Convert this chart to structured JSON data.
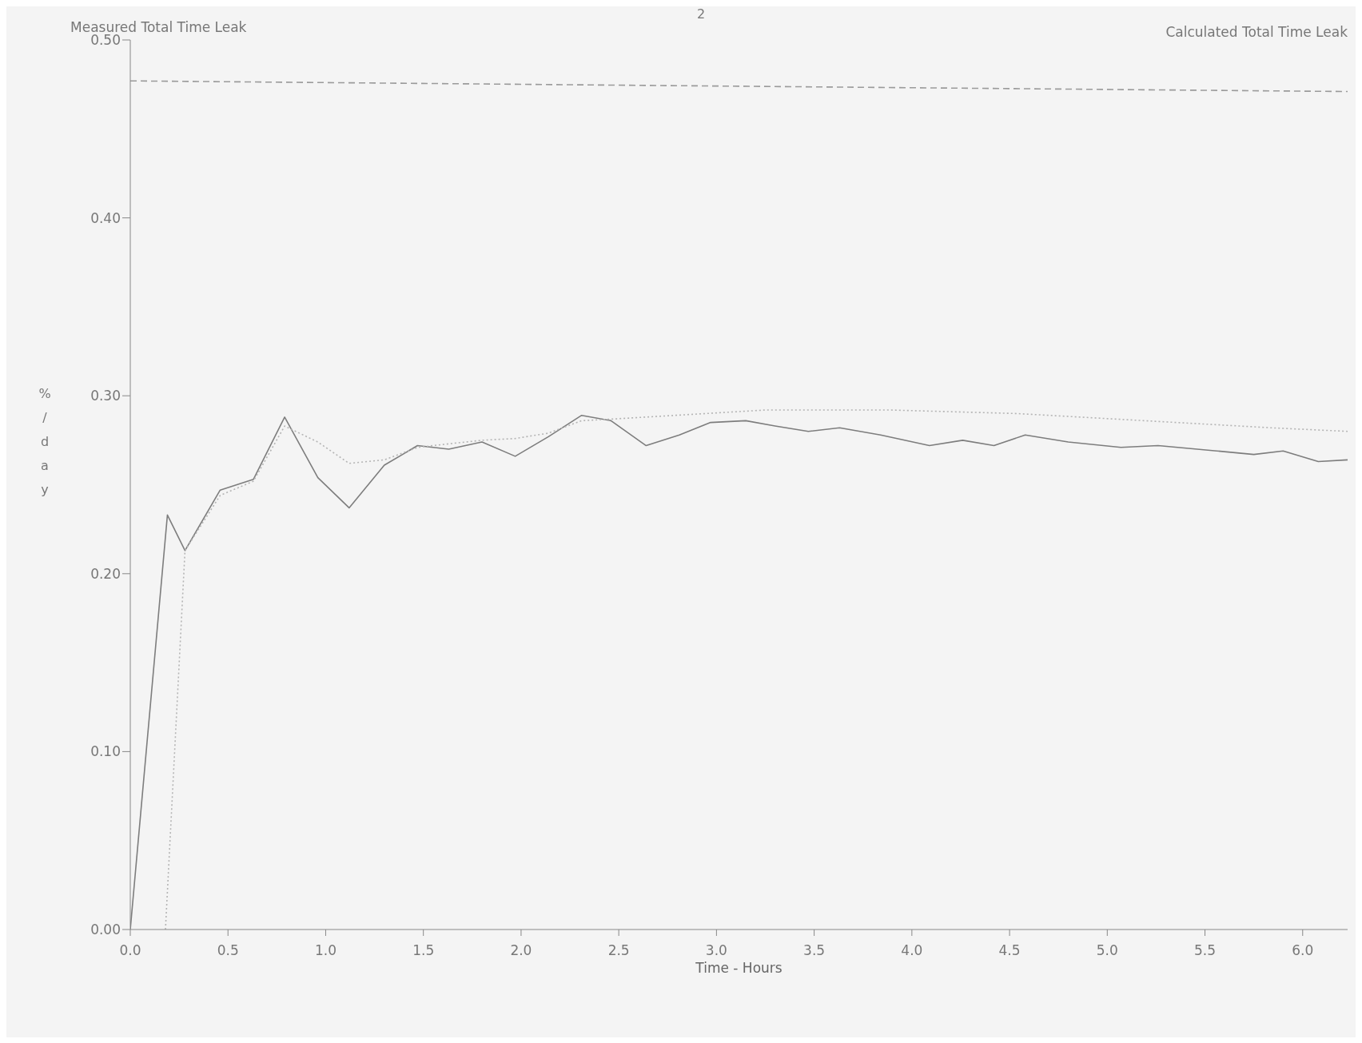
{
  "chart_data": {
    "type": "line",
    "xlabel": "Time - Hours",
    "ylabel": "%/day",
    "annotations": [
      "2",
      "Measured Total Time Leak",
      "Calculated Total Time Leak"
    ],
    "xlim": [
      0,
      6.23
    ],
    "ylim": [
      0,
      0.5
    ],
    "xticks": [
      {
        "value": 0,
        "label": "0.0"
      },
      {
        "value": 0.5,
        "label": "0.5"
      },
      {
        "value": 1,
        "label": "1.0"
      },
      {
        "value": 1.5,
        "label": "1.5"
      },
      {
        "value": 2,
        "label": "2.0"
      },
      {
        "value": 2.5,
        "label": "2.5"
      },
      {
        "value": 3,
        "label": "3.0"
      },
      {
        "value": 3.5,
        "label": "3.5"
      },
      {
        "value": 4,
        "label": "4.0"
      },
      {
        "value": 4.5,
        "label": "4.5"
      },
      {
        "value": 5,
        "label": "5.0"
      },
      {
        "value": 5.5,
        "label": "5.5"
      },
      {
        "value": 6,
        "label": "6.0"
      }
    ],
    "yticks": [
      {
        "value": 0,
        "label": "0.00"
      },
      {
        "value": 0.1,
        "label": "0.10"
      },
      {
        "value": 0.2,
        "label": "0.20"
      },
      {
        "value": 0.3,
        "label": "0.30"
      },
      {
        "value": 0.4,
        "label": "0.40"
      },
      {
        "value": 0.5,
        "label": "0.50"
      }
    ],
    "grid": false,
    "marker": "none",
    "series": [
      {
        "color": "#7d7d7d",
        "line_style": "solid",
        "x": [
          0,
          0.19,
          0.28,
          0.46,
          0.63,
          0.79,
          0.96,
          1.12,
          1.3,
          1.47,
          1.63,
          1.8,
          1.97,
          2.14,
          2.31,
          2.46,
          2.64,
          2.81,
          2.97,
          3.15,
          3.3,
          3.47,
          3.63,
          3.84,
          4.09,
          4.26,
          4.42,
          4.58,
          4.8,
          5.07,
          5.26,
          5.56,
          5.75,
          5.9,
          6.08,
          6.23
        ],
        "values": [
          0,
          0.233,
          0.213,
          0.247,
          0.253,
          0.288,
          0.254,
          0.237,
          0.261,
          0.272,
          0.27,
          0.274,
          0.266,
          0.277,
          0.289,
          0.286,
          0.272,
          0.278,
          0.285,
          0.286,
          0.283,
          0.28,
          0.282,
          0.278,
          0.272,
          0.275,
          0.272,
          0.278,
          0.274,
          0.271,
          0.272,
          0.269,
          0.267,
          0.269,
          0.263,
          0.264
        ]
      },
      {
        "color": "#b4b4b4",
        "line_style": "dotted",
        "x": [
          0.18,
          0.28,
          0.46,
          0.63,
          0.79,
          0.96,
          1.12,
          1.3,
          1.47,
          1.63,
          1.8,
          1.97,
          2.14,
          2.31,
          2.48,
          3.25,
          3.89,
          4.54,
          5.19,
          5.84,
          6.23
        ],
        "values": [
          0,
          0.213,
          0.244,
          0.252,
          0.283,
          0.274,
          0.262,
          0.264,
          0.271,
          0.273,
          0.275,
          0.276,
          0.279,
          0.286,
          0.287,
          0.292,
          0.292,
          0.29,
          0.286,
          0.282,
          0.28
        ]
      },
      {
        "color": "#9a9a9a",
        "line_style": "dashed",
        "x": [
          0,
          6.23
        ],
        "values": [
          0.477,
          0.471
        ]
      }
    ]
  }
}
